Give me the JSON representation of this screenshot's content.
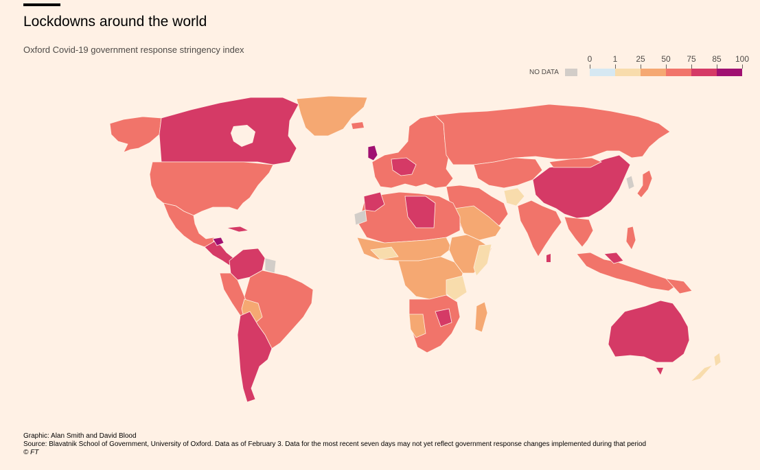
{
  "header": {
    "title": "Lockdowns around the world",
    "subtitle": "Oxford Covid-19 government response stringency index"
  },
  "legend": {
    "no_data_label": "NO DATA",
    "no_data_color": "#d2cdc8",
    "ticks": [
      "0",
      "1",
      "25",
      "50",
      "75",
      "85",
      "100"
    ],
    "bins": [
      {
        "from": 0,
        "to": 1,
        "color": "#d6e8f2"
      },
      {
        "from": 1,
        "to": 25,
        "color": "#f8dcac"
      },
      {
        "from": 25,
        "to": 50,
        "color": "#f5a872"
      },
      {
        "from": 50,
        "to": 75,
        "color": "#f1746a"
      },
      {
        "from": 75,
        "to": 85,
        "color": "#d53a66"
      },
      {
        "from": 85,
        "to": 100,
        "color": "#a01071"
      }
    ]
  },
  "footer": {
    "graphic": "Graphic: Alan Smith and David Blood",
    "source": "Source: Blavatnik School of Government, University of Oxford. Data as of February 3. Data for the most recent seven days may not yet reflect government response changes implemented during that period",
    "copyright": "© FT"
  }
}
